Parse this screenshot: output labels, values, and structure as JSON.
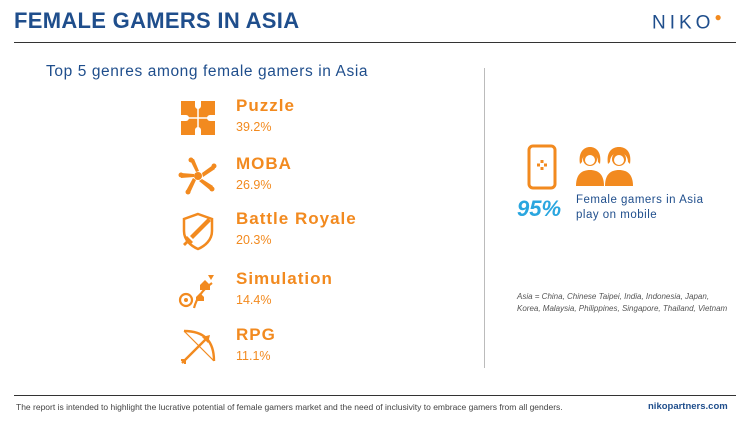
{
  "header": {
    "title": "FEMALE GAMERS IN ASIA",
    "logo_text": "NIKO",
    "logo_dot": "●"
  },
  "subtitle": "Top 5 genres among female gamers in Asia",
  "genres": [
    {
      "name": "Puzzle",
      "percent": "39.2%",
      "icon": "puzzle-icon"
    },
    {
      "name": "MOBA",
      "percent": "26.9%",
      "icon": "team-hands-icon"
    },
    {
      "name": "Battle Royale",
      "percent": "20.3%",
      "icon": "shield-sword-icon"
    },
    {
      "name": "Simulation",
      "percent": "14.4%",
      "icon": "simulation-icon"
    },
    {
      "name": "RPG",
      "percent": "11.1%",
      "icon": "bow-arrow-icon"
    }
  ],
  "stat": {
    "value": "95%",
    "line1": "Female gamers in Asia",
    "line2": "play on mobile"
  },
  "note": "Asia = China, Chinese Taipei, India, Indonesia, Japan, Korea, Malaysia, Philippines, Singapore, Thailand, Vietnam",
  "footer": {
    "text": "The report is intended to highlight the lucrative potential of female gamers market and the need of inclusivity to embrace gamers from all genders.",
    "url": "nikopartners.com"
  },
  "colors": {
    "primary": "#1f4e8c",
    "accent": "#f28a1f",
    "stat": "#2aa6df"
  }
}
